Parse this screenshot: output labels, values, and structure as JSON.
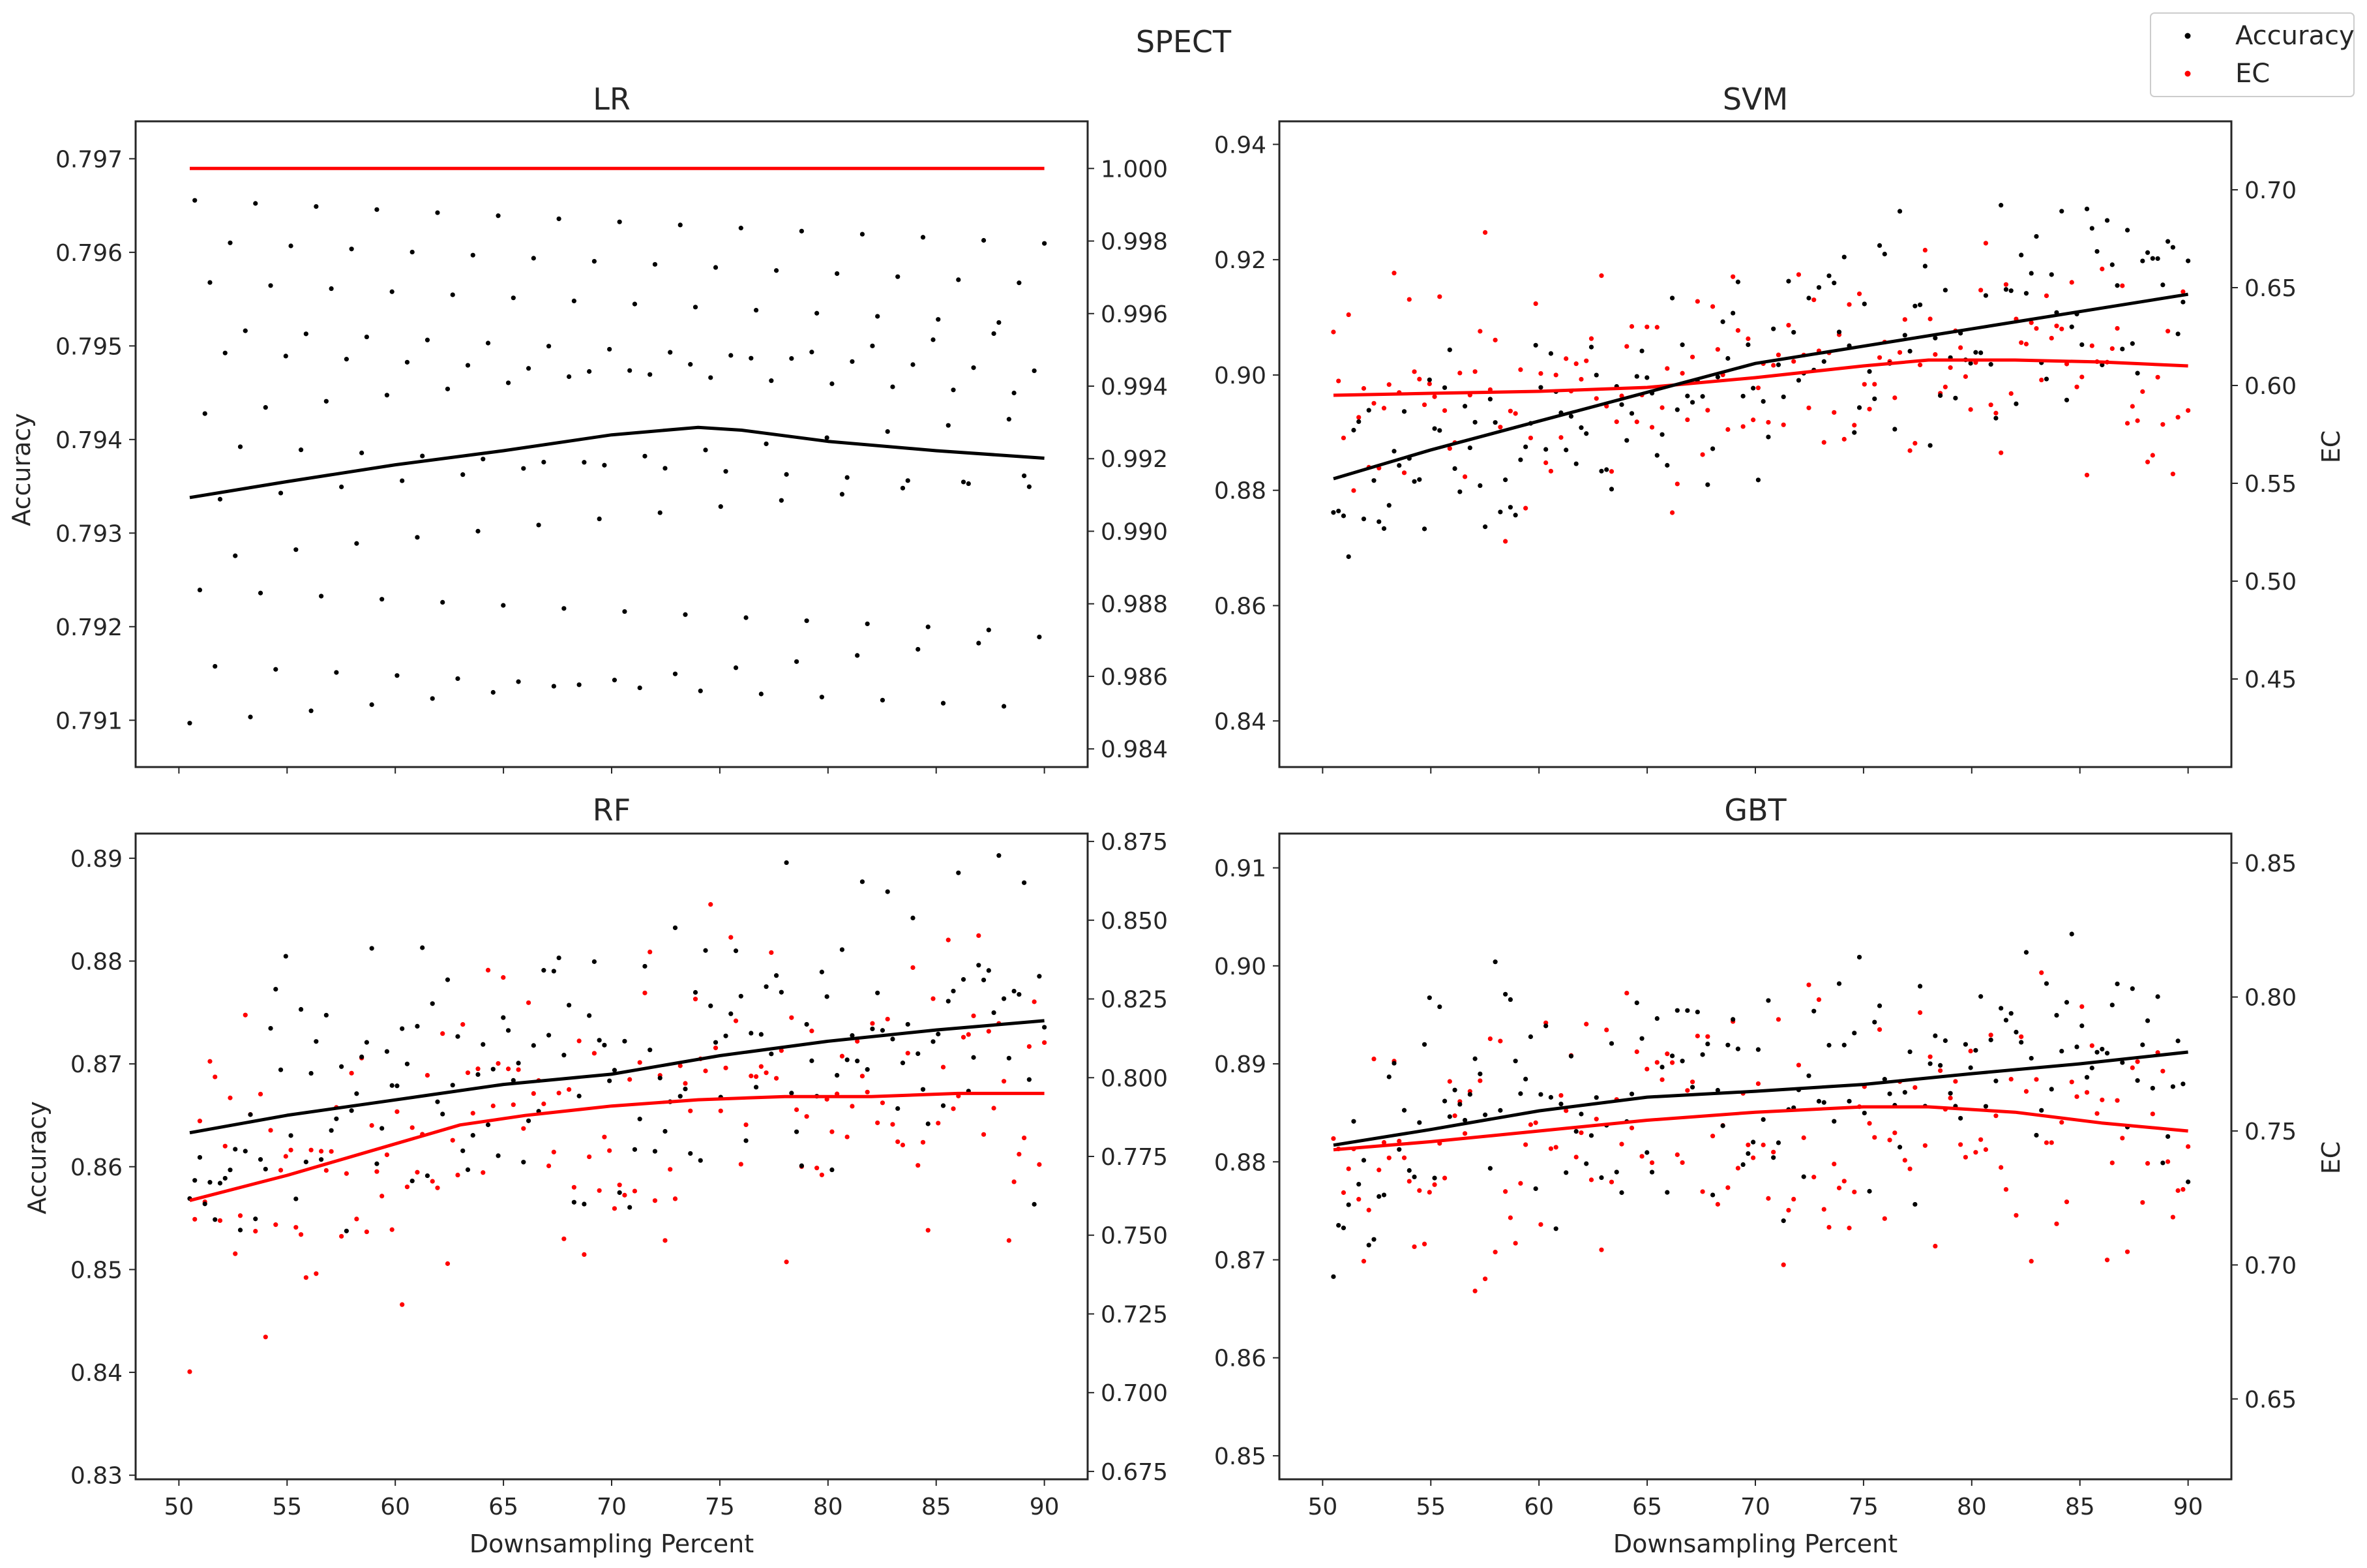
{
  "chart_data": {
    "title": "SPECT",
    "legend": {
      "placement": "top-right",
      "entries": [
        {
          "label": "Accuracy",
          "color": "#000000"
        },
        {
          "label": "EC",
          "color": "#ff0000"
        }
      ]
    },
    "colors": {
      "accuracy": "#000000",
      "ec": "#ff0000"
    },
    "subplots": [
      {
        "id": "lr",
        "title": "LR",
        "type": "scatter",
        "xlabel": "",
        "ylabel": "Accuracy",
        "y2label": "",
        "xlim": [
          48,
          92
        ],
        "ylim": [
          0.7905,
          0.7974
        ],
        "y2lim": [
          0.9835,
          1.0013
        ],
        "xticks": [
          50,
          55,
          60,
          65,
          70,
          75,
          80,
          85,
          90
        ],
        "xtick_labels_visible": false,
        "yticks": [
          0.791,
          0.792,
          0.793,
          0.794,
          0.795,
          0.796,
          0.797
        ],
        "ytick_labels": [
          "0.791",
          "0.792",
          "0.793",
          "0.794",
          "0.795",
          "0.796",
          "0.797"
        ],
        "y2ticks": [
          0.984,
          0.986,
          0.988,
          0.99,
          0.992,
          0.994,
          0.996,
          0.998,
          1.0
        ],
        "y2tick_labels": [
          "0.984",
          "0.986",
          "0.988",
          "0.990",
          "0.992",
          "0.994",
          "0.996",
          "0.998",
          "1.000"
        ],
        "accuracy_trend": [
          [
            50.5,
            0.79338
          ],
          [
            55,
            0.79355
          ],
          [
            60,
            0.79373
          ],
          [
            65,
            0.79388
          ],
          [
            70,
            0.79405
          ],
          [
            74,
            0.79413
          ],
          [
            76,
            0.7941
          ],
          [
            80,
            0.79398
          ],
          [
            85,
            0.79388
          ],
          [
            90,
            0.7938
          ]
        ],
        "ec_trend": [
          [
            50.5,
            1.0
          ],
          [
            90,
            1.0
          ]
        ],
        "accuracy_points": [],
        "ec_points": [],
        "seed": 11,
        "pattern": "lr"
      },
      {
        "id": "svm",
        "title": "SVM",
        "type": "scatter",
        "xlabel": "",
        "ylabel": "",
        "y2label": "EC",
        "xlim": [
          48,
          92
        ],
        "ylim": [
          0.832,
          0.944
        ],
        "y2lim": [
          0.405,
          0.735
        ],
        "xticks": [
          50,
          55,
          60,
          65,
          70,
          75,
          80,
          85,
          90
        ],
        "xtick_labels_visible": false,
        "yticks": [
          0.84,
          0.86,
          0.88,
          0.9,
          0.92,
          0.94
        ],
        "ytick_labels": [
          "0.84",
          "0.86",
          "0.88",
          "0.90",
          "0.92",
          "0.94"
        ],
        "y2ticks": [
          0.45,
          0.5,
          0.55,
          0.6,
          0.65,
          0.7
        ],
        "y2tick_labels": [
          "0.45",
          "0.50",
          "0.55",
          "0.60",
          "0.65",
          "0.70"
        ],
        "accuracy_trend": [
          [
            50.5,
            0.882
          ],
          [
            55,
            0.887
          ],
          [
            60,
            0.892
          ],
          [
            65,
            0.897
          ],
          [
            70,
            0.902
          ],
          [
            75,
            0.905
          ],
          [
            80,
            0.908
          ],
          [
            85,
            0.911
          ],
          [
            90,
            0.914
          ]
        ],
        "ec_trend": [
          [
            50.5,
            0.595
          ],
          [
            55,
            0.596
          ],
          [
            60,
            0.597
          ],
          [
            65,
            0.599
          ],
          [
            70,
            0.604
          ],
          [
            75,
            0.61
          ],
          [
            78,
            0.613
          ],
          [
            82,
            0.613
          ],
          [
            86,
            0.612
          ],
          [
            90,
            0.61
          ]
        ],
        "seed": 23,
        "pattern": "random",
        "acc_spread": 0.017,
        "ec_spread": 0.055
      },
      {
        "id": "rf",
        "title": "RF",
        "type": "scatter",
        "xlabel": "Downsampling Percent",
        "ylabel": "Accuracy",
        "y2label": "",
        "xlim": [
          48,
          92
        ],
        "ylim": [
          0.8296,
          0.8924
        ],
        "y2lim": [
          0.6725,
          0.8775
        ],
        "xticks": [
          50,
          55,
          60,
          65,
          70,
          75,
          80,
          85,
          90
        ],
        "xtick_labels_visible": true,
        "xtick_labels": [
          "50",
          "55",
          "60",
          "65",
          "70",
          "75",
          "80",
          "85",
          "90"
        ],
        "yticks": [
          0.83,
          0.84,
          0.85,
          0.86,
          0.87,
          0.88,
          0.89
        ],
        "ytick_labels": [
          "0.83",
          "0.84",
          "0.85",
          "0.86",
          "0.87",
          "0.88",
          "0.89"
        ],
        "y2ticks": [
          0.675,
          0.7,
          0.725,
          0.75,
          0.775,
          0.8,
          0.825,
          0.85,
          0.875
        ],
        "y2tick_labels": [
          "0.675",
          "0.700",
          "0.725",
          "0.750",
          "0.775",
          "0.800",
          "0.825",
          "0.850",
          "0.875"
        ],
        "accuracy_trend": [
          [
            50.5,
            0.8633
          ],
          [
            55,
            0.865
          ],
          [
            60,
            0.8665
          ],
          [
            65,
            0.868
          ],
          [
            70,
            0.869
          ],
          [
            75,
            0.8708
          ],
          [
            80,
            0.8722
          ],
          [
            85,
            0.8733
          ],
          [
            90,
            0.8742
          ]
        ],
        "ec_trend": [
          [
            50.5,
            0.761
          ],
          [
            55,
            0.769
          ],
          [
            60,
            0.779
          ],
          [
            63,
            0.785
          ],
          [
            66,
            0.788
          ],
          [
            70,
            0.791
          ],
          [
            74,
            0.793
          ],
          [
            78,
            0.794
          ],
          [
            82,
            0.794
          ],
          [
            86,
            0.795
          ],
          [
            90,
            0.795
          ]
        ],
        "seed": 37,
        "pattern": "random",
        "acc_spread": 0.013,
        "ec_spread": 0.045
      },
      {
        "id": "gbt",
        "title": "GBT",
        "type": "scatter",
        "xlabel": "Downsampling Percent",
        "ylabel": "",
        "y2label": "EC",
        "xlim": [
          48,
          92
        ],
        "ylim": [
          0.8476,
          0.9135
        ],
        "y2lim": [
          0.62,
          0.861
        ],
        "xticks": [
          50,
          55,
          60,
          65,
          70,
          75,
          80,
          85,
          90
        ],
        "xtick_labels_visible": true,
        "xtick_labels": [
          "50",
          "55",
          "60",
          "65",
          "70",
          "75",
          "80",
          "85",
          "90"
        ],
        "yticks": [
          0.85,
          0.86,
          0.87,
          0.88,
          0.89,
          0.9,
          0.91
        ],
        "ytick_labels": [
          "0.85",
          "0.86",
          "0.87",
          "0.88",
          "0.89",
          "0.90",
          "0.91"
        ],
        "y2ticks": [
          0.65,
          0.7,
          0.75,
          0.8,
          0.85
        ],
        "y2tick_labels": [
          "0.65",
          "0.70",
          "0.75",
          "0.80",
          "0.85"
        ],
        "accuracy_trend": [
          [
            50.5,
            0.8817
          ],
          [
            55,
            0.8833
          ],
          [
            60,
            0.8852
          ],
          [
            65,
            0.8866
          ],
          [
            70,
            0.8872
          ],
          [
            75,
            0.8879
          ],
          [
            80,
            0.889
          ],
          [
            85,
            0.89
          ],
          [
            90,
            0.8912
          ]
        ],
        "ec_trend": [
          [
            50.5,
            0.743
          ],
          [
            55,
            0.746
          ],
          [
            60,
            0.75
          ],
          [
            65,
            0.754
          ],
          [
            70,
            0.757
          ],
          [
            75,
            0.759
          ],
          [
            78,
            0.759
          ],
          [
            82,
            0.757
          ],
          [
            86,
            0.753
          ],
          [
            90,
            0.75
          ]
        ],
        "seed": 53,
        "pattern": "random",
        "acc_spread": 0.012,
        "ec_spread": 0.045
      }
    ]
  }
}
